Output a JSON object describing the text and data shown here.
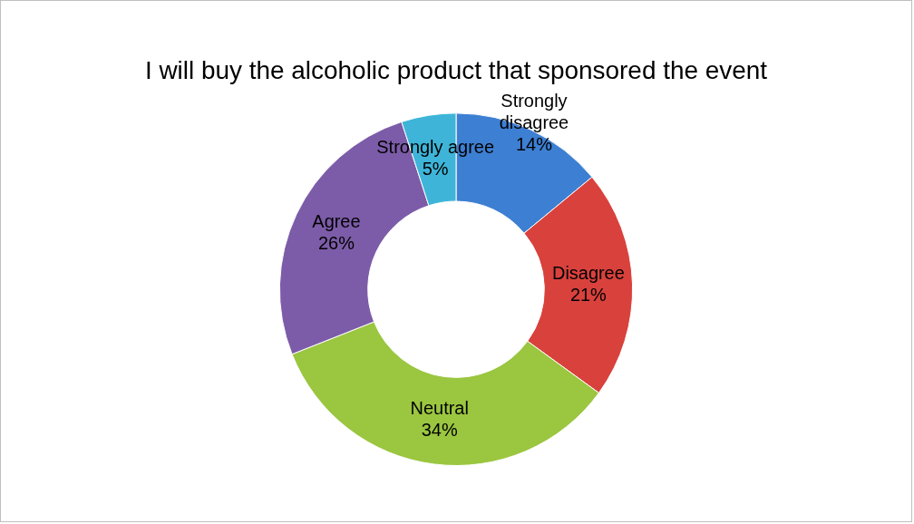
{
  "chart_data": {
    "type": "donut",
    "title": "I will buy the alcoholic product that sponsored the event",
    "categories": [
      "Strongly disagree",
      "Disagree",
      "Neutral",
      "Agree",
      "Strongly agree"
    ],
    "values": [
      14,
      21,
      34,
      26,
      5
    ],
    "value_labels": [
      "14%",
      "21%",
      "34%",
      "26%",
      "5%"
    ],
    "colors": [
      "#3d7fd2",
      "#d9413c",
      "#9bc640",
      "#7c5ca8",
      "#3eb5d8"
    ],
    "legend": false
  }
}
